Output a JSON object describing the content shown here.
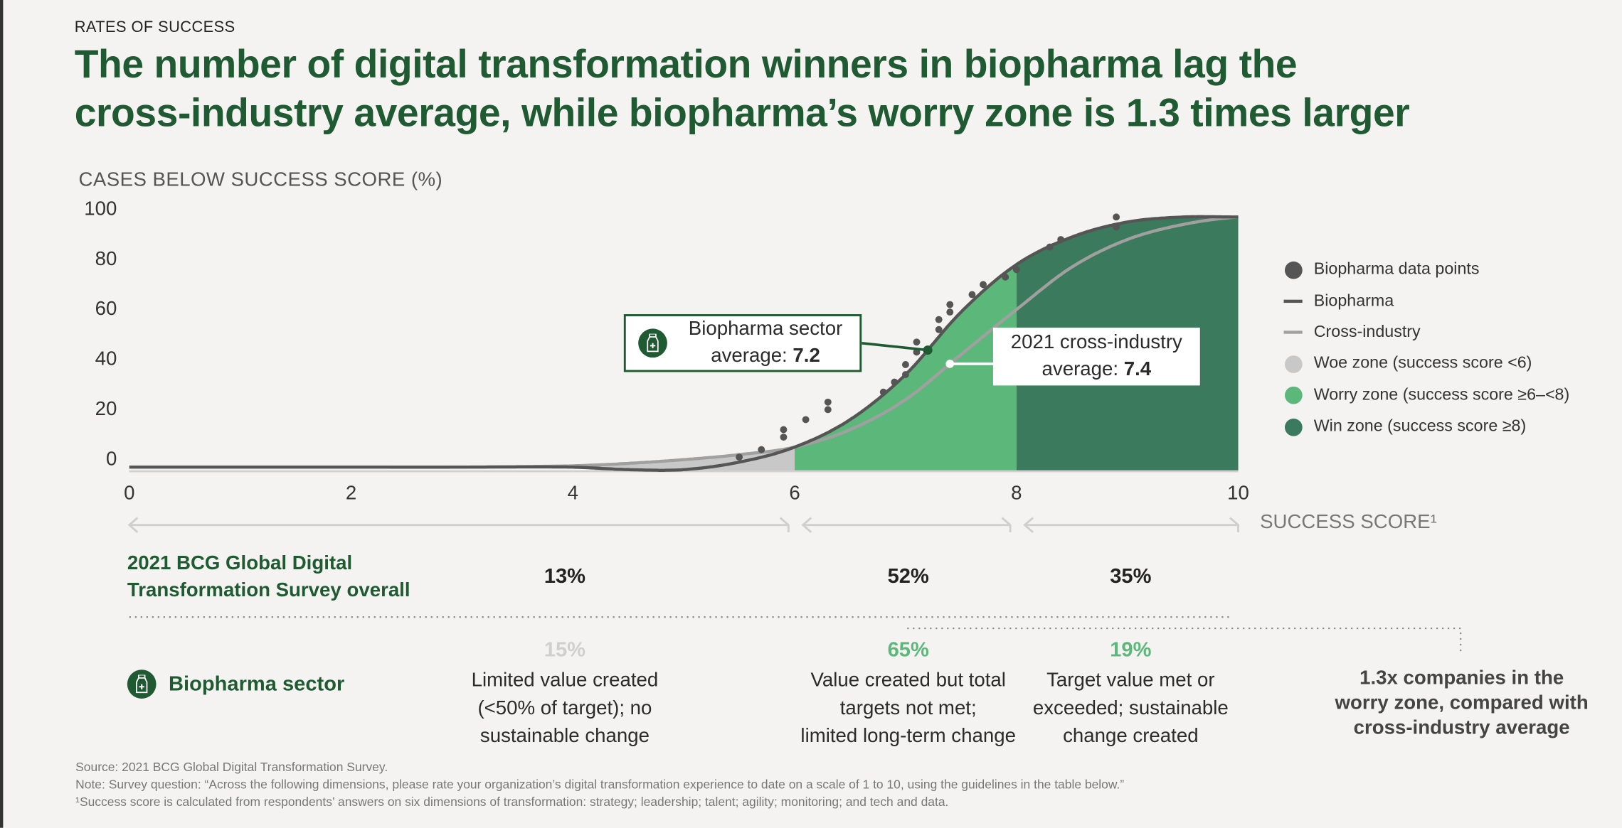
{
  "kicker": "RATES OF SUCCESS",
  "title_line1": "The number of digital transformation winners in biopharma lag the",
  "title_line2": "cross-industry average, while biopharma’s worry zone is 1.3 times larger",
  "colors": {
    "title": "#1f5a32",
    "woe": "#c8c8c8",
    "worry": "#5cb87a",
    "win": "#3b7a5c",
    "biopharma_line": "#555555",
    "cross_line": "#a0a0a0",
    "dots": "#555555"
  },
  "callouts": {
    "biopharma_line1": "Biopharma sector",
    "biopharma_line2": "average: ",
    "biopharma_value": "7.2",
    "cross_line1": "2021 cross-industry",
    "cross_line2": "average: ",
    "cross_value": "7.4",
    "icon": "medicine-bottle-icon"
  },
  "chart_data": {
    "type": "line",
    "ylabel": "CASES BELOW SUCCESS SCORE (%)",
    "xlabel": "SUCCESS SCORE¹",
    "xlim": [
      0,
      10
    ],
    "ylim": [
      0,
      100
    ],
    "xticks": [
      "0",
      "2",
      "4",
      "6",
      "8",
      "10"
    ],
    "yticks": [
      "100",
      "80",
      "60",
      "40",
      "20",
      "0"
    ],
    "grid": false,
    "legend_position": "right",
    "legend": [
      "Biopharma data points",
      "Biopharma",
      "Cross-industry",
      "Woe zone (success score <6)",
      "Worry zone (success score ≥6–<8)",
      "Win zone (success score ≥8)"
    ],
    "zones": [
      {
        "name": "Woe zone",
        "from": 0,
        "to": 6
      },
      {
        "name": "Worry zone",
        "from": 6,
        "to": 8
      },
      {
        "name": "Win zone",
        "from": 8,
        "to": 10
      }
    ],
    "x": [
      0,
      1,
      2,
      3,
      4,
      4.5,
      5,
      5.5,
      6,
      6.5,
      7,
      7.5,
      8,
      8.5,
      9,
      9.5,
      10
    ],
    "series": [
      {
        "name": "Biopharma",
        "values": [
          0,
          0,
          0,
          0,
          0,
          -1,
          -1,
          2,
          8,
          19,
          37,
          62,
          81,
          92,
          98,
          100,
          100
        ]
      },
      {
        "name": "Cross-industry",
        "values": [
          0,
          0,
          0,
          0,
          0.5,
          1.5,
          3,
          5,
          8,
          15,
          27,
          45,
          63,
          80,
          91,
          97,
          100
        ]
      }
    ],
    "points_name": "Biopharma data points",
    "points": [
      [
        5.5,
        4
      ],
      [
        5.7,
        7
      ],
      [
        5.9,
        12
      ],
      [
        5.9,
        15
      ],
      [
        6.1,
        19
      ],
      [
        6.3,
        23
      ],
      [
        6.3,
        26
      ],
      [
        6.8,
        30
      ],
      [
        6.9,
        34
      ],
      [
        7.0,
        37
      ],
      [
        7.0,
        41
      ],
      [
        7.1,
        46
      ],
      [
        7.1,
        50
      ],
      [
        7.3,
        55
      ],
      [
        7.3,
        59
      ],
      [
        7.4,
        62
      ],
      [
        7.4,
        65
      ],
      [
        7.6,
        69
      ],
      [
        7.7,
        73
      ],
      [
        7.9,
        76
      ],
      [
        8.0,
        79
      ],
      [
        8.3,
        88
      ],
      [
        8.4,
        91
      ],
      [
        8.9,
        96
      ],
      [
        8.9,
        100
      ]
    ],
    "annotations": [
      {
        "x": 7.2,
        "label": "Biopharma sector average: 7.2"
      },
      {
        "x": 7.4,
        "label": "2021 cross-industry average: 7.4"
      }
    ]
  },
  "survey": {
    "label_line1": "2021 BCG Global Digital",
    "label_line2": "Transformation Survey overall",
    "values": [
      "13%",
      "52%",
      "35%"
    ]
  },
  "biopharma": {
    "label": "Biopharma sector",
    "values": [
      "15%",
      "65%",
      "19%"
    ],
    "descriptions": [
      [
        "Limited value created",
        "(<50% of target); no",
        "sustainable change"
      ],
      [
        "Value created but total",
        "targets not met;",
        "limited long-term change"
      ],
      [
        "Target value met or",
        "exceeded; sustainable",
        "change created"
      ]
    ]
  },
  "worry_note": [
    "1.3x companies in the",
    "worry zone, compared with",
    "cross-industry average"
  ],
  "footer": {
    "source": "Source: 2021 BCG Global Digital Transformation Survey.",
    "note": "Note: Survey question: “Across the following dimensions, please rate your organization’s digital transformation experience to date on a scale of 1 to 10, using the guidelines in the table below.”",
    "footnote": "¹Success score is calculated from respondents’ answers on six dimensions of transformation: strategy; leadership; talent; agility; monitoring; and tech and data."
  }
}
